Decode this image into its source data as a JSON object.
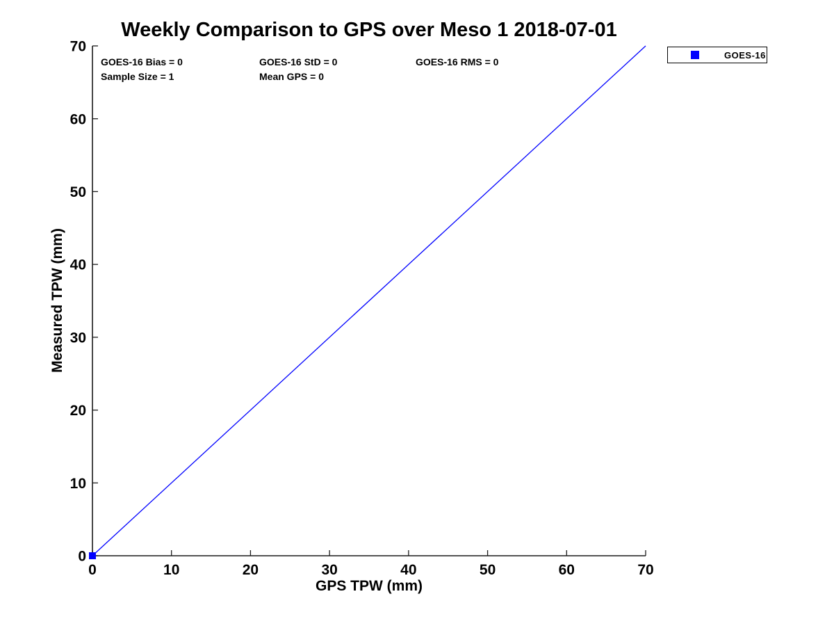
{
  "chart_data": {
    "type": "scatter",
    "title": "Weekly Comparison to GPS over Meso 1 2018-07-01",
    "xlabel": "GPS TPW (mm)",
    "ylabel": "Measured TPW (mm)",
    "xlim": [
      0,
      70
    ],
    "ylim": [
      0,
      70
    ],
    "xticks": [
      0,
      10,
      20,
      30,
      40,
      50,
      60,
      70
    ],
    "yticks": [
      0,
      10,
      20,
      30,
      40,
      50,
      60,
      70
    ],
    "grid": false,
    "axis_color": "#1a1a1a",
    "text_color": "#000000",
    "annotations": {
      "bias": "GOES-16 Bias = 0",
      "std": "GOES-16 StD = 0",
      "rms": "GOES-16 RMS = 0",
      "sample_size": "Sample Size = 1",
      "mean_gps": "Mean GPS = 0"
    },
    "series": [
      {
        "name": "GOES-16",
        "plot": "scatter",
        "marker": "square",
        "marker_size": 10,
        "color": "#0000ff",
        "points": [
          [
            0,
            0
          ]
        ]
      },
      {
        "name": "one-to-one-line",
        "plot": "line",
        "color": "#0000ff",
        "line_width": 1.3,
        "points": [
          [
            0,
            0
          ],
          [
            70,
            70
          ]
        ]
      }
    ],
    "legend": {
      "position": "top-right-outside",
      "entries": [
        {
          "label": "GOES-16",
          "marker": "square",
          "color": "#0000ff"
        }
      ]
    }
  }
}
